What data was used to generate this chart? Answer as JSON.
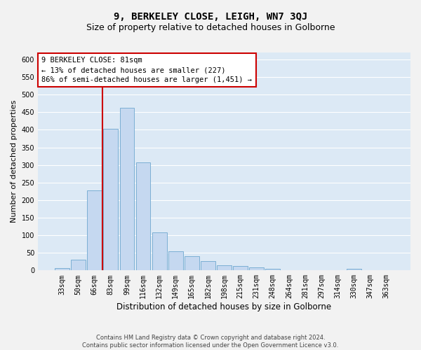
{
  "title": "9, BERKELEY CLOSE, LEIGH, WN7 3QJ",
  "subtitle": "Size of property relative to detached houses in Golborne",
  "xlabel": "Distribution of detached houses by size in Golborne",
  "ylabel": "Number of detached properties",
  "footer_line1": "Contains HM Land Registry data © Crown copyright and database right 2024.",
  "footer_line2": "Contains public sector information licensed under the Open Government Licence v3.0.",
  "categories": [
    "33sqm",
    "50sqm",
    "66sqm",
    "83sqm",
    "99sqm",
    "116sqm",
    "132sqm",
    "149sqm",
    "165sqm",
    "182sqm",
    "198sqm",
    "215sqm",
    "231sqm",
    "248sqm",
    "264sqm",
    "281sqm",
    "297sqm",
    "314sqm",
    "330sqm",
    "347sqm",
    "363sqm"
  ],
  "values": [
    6,
    30,
    228,
    403,
    463,
    307,
    108,
    55,
    41,
    27,
    14,
    12,
    9,
    5,
    0,
    0,
    0,
    0,
    5,
    0,
    0
  ],
  "bar_color": "#c5d8f0",
  "bar_edge_color": "#7bafd4",
  "redline_index": 2.5,
  "annotation_line1": "9 BERKELEY CLOSE: 81sqm",
  "annotation_line2": "← 13% of detached houses are smaller (227)",
  "annotation_line3": "86% of semi-detached houses are larger (1,451) →",
  "annotation_box_facecolor": "#ffffff",
  "annotation_box_edgecolor": "#cc0000",
  "redline_color": "#cc0000",
  "ylim": [
    0,
    620
  ],
  "yticks": [
    0,
    50,
    100,
    150,
    200,
    250,
    300,
    350,
    400,
    450,
    500,
    550,
    600
  ],
  "plot_bg_color": "#dce9f5",
  "fig_bg_color": "#f2f2f2",
  "grid_color": "#ffffff",
  "title_fontsize": 10,
  "subtitle_fontsize": 9,
  "xlabel_fontsize": 8.5,
  "ylabel_fontsize": 8,
  "tick_fontsize": 7,
  "annotation_fontsize": 7.5,
  "footer_fontsize": 6
}
